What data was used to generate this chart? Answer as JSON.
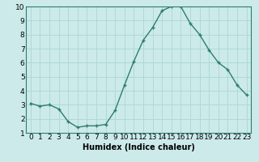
{
  "x": [
    0,
    1,
    2,
    3,
    4,
    5,
    6,
    7,
    8,
    9,
    10,
    11,
    12,
    13,
    14,
    15,
    16,
    17,
    18,
    19,
    20,
    21,
    22,
    23
  ],
  "y": [
    3.1,
    2.9,
    3.0,
    2.7,
    1.8,
    1.4,
    1.5,
    1.5,
    1.6,
    2.6,
    4.4,
    6.1,
    7.6,
    8.5,
    9.7,
    10.0,
    10.0,
    8.8,
    8.0,
    6.9,
    6.0,
    5.5,
    4.4,
    3.7
  ],
  "line_color": "#2e7d6e",
  "marker": "+",
  "marker_size": 3,
  "bg_color": "#cceaea",
  "grid_color": "#b0d8d8",
  "xlabel": "Humidex (Indice chaleur)",
  "xlim": [
    -0.5,
    23.5
  ],
  "ylim": [
    1,
    10
  ],
  "yticks": [
    1,
    2,
    3,
    4,
    5,
    6,
    7,
    8,
    9,
    10
  ],
  "xticks": [
    0,
    1,
    2,
    3,
    4,
    5,
    6,
    7,
    8,
    9,
    10,
    11,
    12,
    13,
    14,
    15,
    16,
    17,
    18,
    19,
    20,
    21,
    22,
    23
  ],
  "xlabel_fontsize": 7,
  "tick_fontsize": 6.5,
  "line_width": 1.0
}
